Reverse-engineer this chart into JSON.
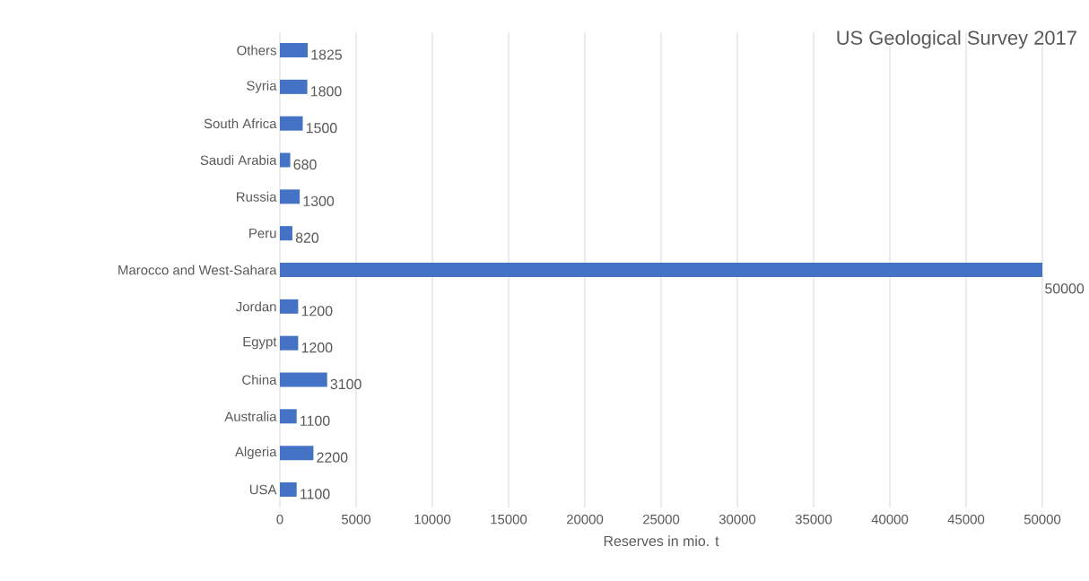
{
  "chart_data": {
    "type": "bar",
    "orientation": "horizontal",
    "title": "US Geological Survey 2017",
    "xlabel": "Reserves in mio. t",
    "categories": [
      "Others",
      "Syria",
      "South Africa",
      "Saudi Arabia",
      "Russia",
      "Peru",
      "Marocco and West-Sahara",
      "Jordan",
      "Egypt",
      "China",
      "Australia",
      "Algeria",
      "USA"
    ],
    "values": [
      1825,
      1800,
      1500,
      680,
      1300,
      820,
      50000,
      1200,
      1200,
      3100,
      1100,
      2200,
      1100
    ],
    "color": "#4472c4",
    "xlim": [
      0,
      50000
    ],
    "xticks": [
      0,
      5000,
      10000,
      15000,
      20000,
      25000,
      30000,
      35000,
      40000,
      45000,
      50000
    ],
    "grid": "x",
    "data_labels": true
  }
}
